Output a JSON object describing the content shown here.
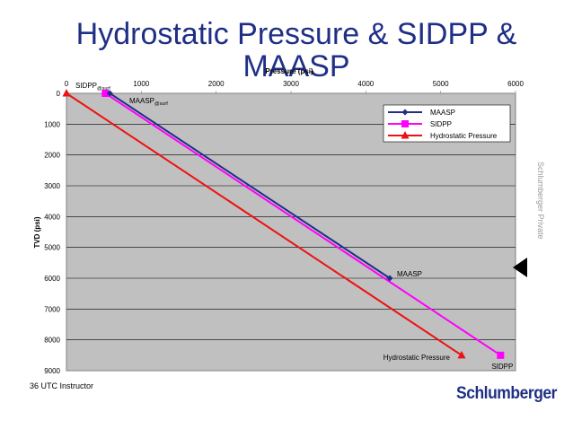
{
  "slide": {
    "title_line1": "Hydrostatic Pressure & SIDPP &",
    "title_line2": "MAASP",
    "side_text": "Schlumberger Private",
    "footer": "36 UTC Instructor",
    "logo": "Schlumberger",
    "nav_icon": "triangle-arrow-icon"
  },
  "chart_data": {
    "type": "line",
    "xlabel": "Pressure (psi)",
    "ylabel": "TVD (psi)",
    "xlim": [
      0,
      6000
    ],
    "ylim": [
      9000,
      0
    ],
    "x_ticks": [
      "0",
      "1000",
      "2000",
      "3000",
      "4000",
      "5000",
      "6000"
    ],
    "y_ticks": [
      "0",
      "1000",
      "2000",
      "3000",
      "4000",
      "5000",
      "6000",
      "7000",
      "8000",
      "9000"
    ],
    "grid": true,
    "legend": "top-right",
    "series": [
      {
        "name": "MAASP",
        "color": "#1f2f86",
        "marker": "diamond",
        "points": [
          [
            580,
            0
          ],
          [
            4320,
            6000
          ]
        ]
      },
      {
        "name": "SIDPP",
        "color": "#ff00ff",
        "marker": "square",
        "points": [
          [
            520,
            0
          ],
          [
            5800,
            8500
          ]
        ]
      },
      {
        "name": "Hydrostatic Pressure",
        "color": "#ee1111",
        "marker": "triangle",
        "points": [
          [
            0,
            0
          ],
          [
            5280,
            8500
          ]
        ]
      }
    ],
    "annotations": {
      "sidpp_surf": {
        "main": "SIDPP",
        "sub": "@surf",
        "x": 0,
        "y": 0
      },
      "maasp_surf": {
        "main": "MAASP",
        "sub": "@surf",
        "x": 580,
        "y": 0
      },
      "maasp_end": {
        "text": "MAASP",
        "x": 4320,
        "y": 6000
      },
      "hydro_end": {
        "text": "Hydrostatic Pressure",
        "x": 5280,
        "y": 8500
      },
      "sidpp_end": {
        "text": "SIDPP",
        "x": 5800,
        "y": 8500
      }
    }
  }
}
